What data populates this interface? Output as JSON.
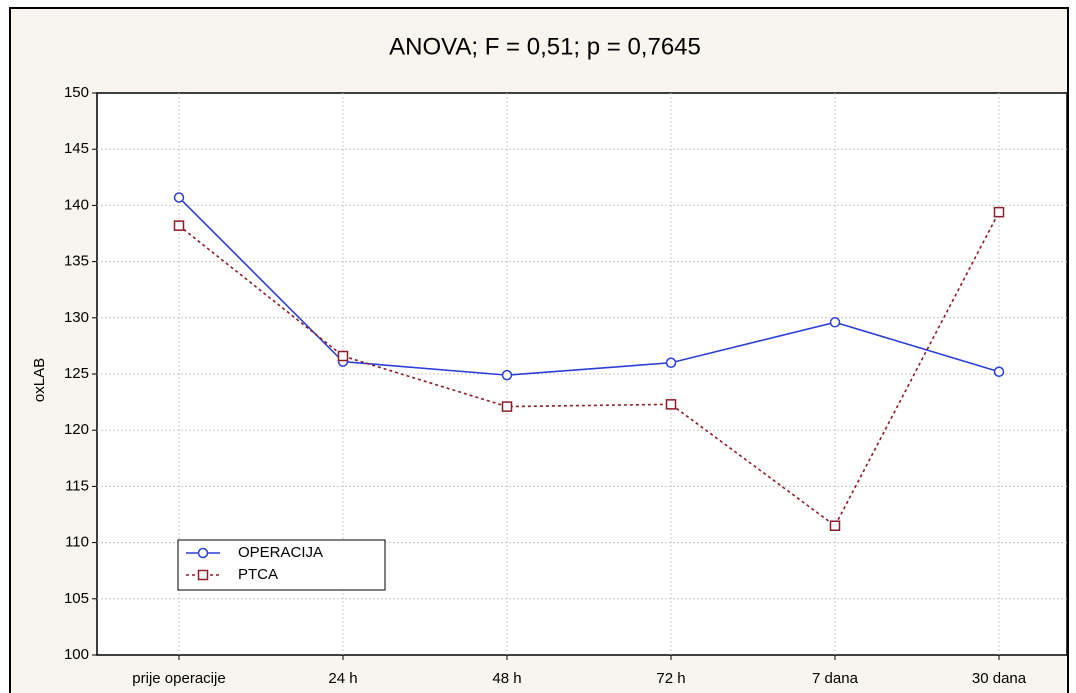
{
  "chart_data": {
    "type": "line",
    "title": "ANOVA;  F = 0,51;  p = 0,7645",
    "y_label": "oxLAB",
    "categories": [
      "prije operacije",
      "24 h",
      "48 h",
      "72 h",
      "7 dana",
      "30 dana"
    ],
    "series": [
      {
        "name": "OPERACIJA",
        "color": "#2b3fd6",
        "marker": "circle",
        "linestyle": "solid",
        "values": [
          140.7,
          126.1,
          124.9,
          126.0,
          129.6,
          125.2
        ]
      },
      {
        "name": "PTCA",
        "color": "#8a1c2c",
        "marker": "square",
        "linestyle": "dotted",
        "values": [
          138.2,
          126.6,
          122.1,
          122.3,
          111.5,
          139.4
        ]
      }
    ],
    "ylim": [
      100,
      150
    ],
    "yticks": [
      100,
      105,
      110,
      115,
      120,
      125,
      130,
      135,
      140,
      145,
      150
    ],
    "grid": true,
    "legend": "lower left"
  }
}
